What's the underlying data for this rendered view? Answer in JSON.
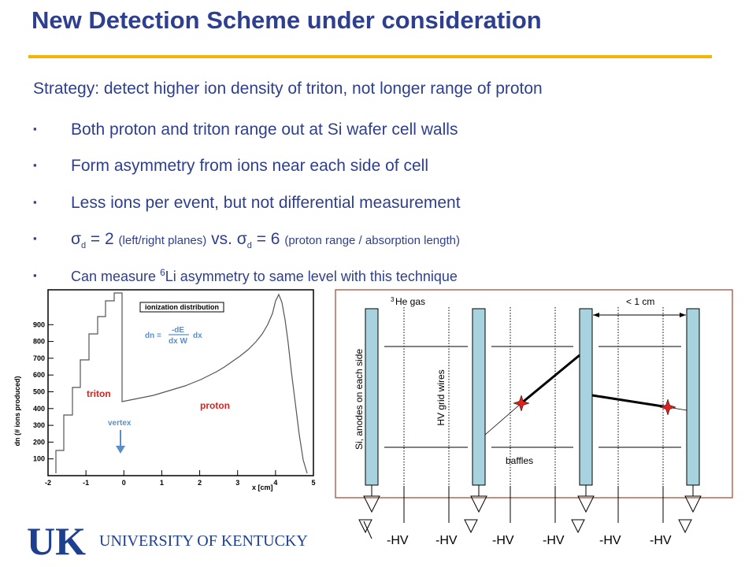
{
  "slide": {
    "title": "New Detection Scheme under consideration",
    "strategy": "Strategy: detect higher ion density of triton, not longer range of proton",
    "bullet_marker": "▪",
    "bullets": [
      "Both proton and triton range out at Si wafer cell walls",
      "Form asymmetry from ions near each side of cell",
      "Less ions per event, but not differential measurement"
    ],
    "sigma_line": {
      "sym1": "σ",
      "sub1": "d",
      "eq1": " = 2 ",
      "note1": "(left/right planes)",
      "vs": " vs. ",
      "sym2": "σ",
      "sub2": "d",
      "eq2": " = 6 ",
      "note2": "(proton range / absorption length)"
    },
    "li_line": {
      "pre": "Can measure ",
      "sup": "6",
      "post": "Li asymmetry to same level with this technique"
    }
  },
  "plot": {
    "legend_title": "ionization distribution",
    "formula": {
      "lhs": "dn =",
      "num": "-dE",
      "den": "dx W",
      "rhs": "dx"
    },
    "triton_label": "triton",
    "proton_label": "proton",
    "vertex_label": "vertex",
    "ylabel": "dn (# ions produced)",
    "xlabel": "x [cm]",
    "yticks": [
      "100",
      "200",
      "300",
      "400",
      "500",
      "600",
      "700",
      "800",
      "900"
    ],
    "xticks": [
      "-2",
      "-1",
      "0",
      "1",
      "2",
      "3",
      "4",
      "5"
    ],
    "colors": {
      "triton": "#e0201b",
      "proton": "#e0201b",
      "vertex": "#5b8ec9"
    }
  },
  "diagram": {
    "he_pre": "3",
    "he_label": "He gas",
    "spacing_label": "< 1 cm",
    "wafer_label": "Si, anodes on each side",
    "wire_label": "HV grid wires",
    "baffle_label": "baffles",
    "hv_labels": [
      "-HV",
      "-HV",
      "-HV",
      "-HV",
      "-HV",
      "-HV"
    ],
    "colors": {
      "wafer": "#a7d3df",
      "frame": "#a0412f",
      "star": "#e0201b"
    }
  },
  "logo": {
    "mark": "UK",
    "name": "UNIVERSITY OF KENTUCKY",
    "color": "#1d3f8f"
  }
}
